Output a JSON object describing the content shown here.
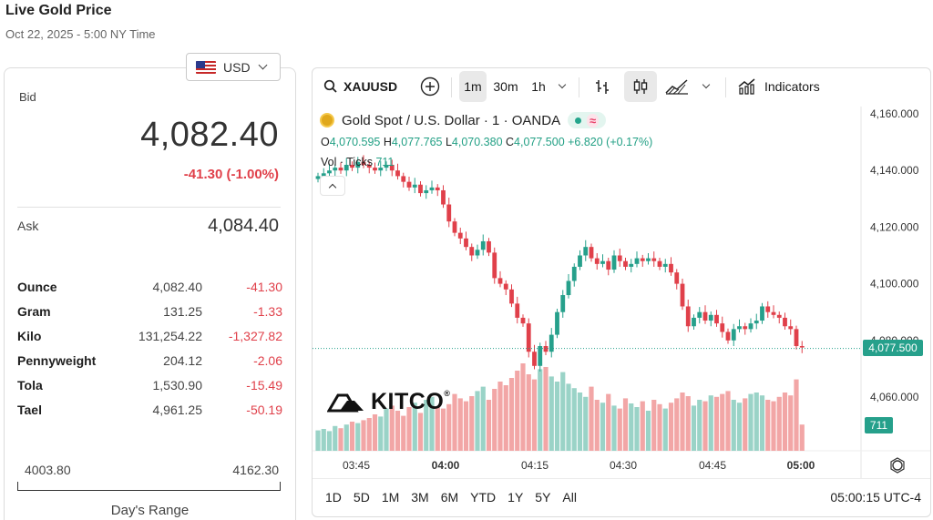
{
  "header": {
    "title": "Live Gold Price",
    "subtitle": "Oct 22, 2025 - 5:00 NY Time"
  },
  "currency": {
    "selected": "USD"
  },
  "quote": {
    "bid_label": "Bid",
    "bid_value": "4,082.40",
    "bid_change": "-41.30 (-1.00%)",
    "ask_label": "Ask",
    "ask_value": "4,084.40"
  },
  "units": [
    {
      "name": "Ounce",
      "price": "4,082.40",
      "change": "-41.30"
    },
    {
      "name": "Gram",
      "price": "131.25",
      "change": "-1.33"
    },
    {
      "name": "Kilo",
      "price": "131,254.22",
      "change": "-1,327.82"
    },
    {
      "name": "Pennyweight",
      "price": "204.12",
      "change": "-2.06"
    },
    {
      "name": "Tola",
      "price": "1,530.90",
      "change": "-15.49"
    },
    {
      "name": "Tael",
      "price": "4,961.25",
      "change": "-50.19"
    }
  ],
  "days_range": {
    "low": "4003.80",
    "high": "4162.30",
    "label": "Day's Range"
  },
  "toolbar": {
    "symbol": "XAUUSD",
    "intervals": [
      "1m",
      "30m",
      "1h"
    ],
    "selected_interval": "1m",
    "indicators_label": "Indicators"
  },
  "legend": {
    "instrument": "Gold Spot / U.S. Dollar · 1 · OANDA",
    "o_label": "O",
    "o_value": "4,070.595",
    "h_label": "H",
    "h_value": "4,077.765",
    "l_label": "L",
    "l_value": "4,070.380",
    "c_label": "C",
    "c_value": "4,077.500",
    "change": "+6.820 (+0.17%)",
    "vol_label": "Vol · Ticks",
    "vol_value": "711"
  },
  "price_tag": "4,077.500",
  "volume_tag": "711",
  "watermark": "KITCO",
  "range_buttons": [
    "1D",
    "5D",
    "1M",
    "3M",
    "6M",
    "YTD",
    "1Y",
    "5Y",
    "All"
  ],
  "clock": "05:00:15 UTC-4",
  "colors": {
    "up": "#26a08b",
    "down": "#e0404a",
    "vol_up": "#9ad3c7",
    "vol_down": "#f2a6a6"
  },
  "chart_data": {
    "type": "candlestick",
    "y_ticks": [
      "4,160.000",
      "4,140.000",
      "4,120.000",
      "4,100.000",
      "4,080.000",
      "4,060.000"
    ],
    "x_ticks": [
      "03:45",
      "04:00",
      "04:15",
      "04:30",
      "04:45",
      "05:00"
    ],
    "ylim": [
      4050,
      4162
    ],
    "closes": [
      4138,
      4139,
      4140,
      4141,
      4140,
      4142,
      4141,
      4143,
      4142,
      4141,
      4140,
      4141,
      4142,
      4140,
      4138,
      4136,
      4134,
      4135,
      4132,
      4133,
      4134,
      4133,
      4128,
      4122,
      4118,
      4116,
      4113,
      4110,
      4112,
      4115,
      4111,
      4102,
      4100,
      4098,
      4093,
      4088,
      4086,
      4076,
      4071,
      4078,
      4076,
      4082,
      4090,
      4096,
      4101,
      4106,
      4110,
      4113,
      4109,
      4107,
      4108,
      4105,
      4110,
      4108,
      4106,
      4107,
      4109,
      4108,
      4109,
      4108,
      4106,
      4107,
      4104,
      4100,
      4092,
      4085,
      4088,
      4090,
      4087,
      4089,
      4086,
      4083,
      4080,
      4084,
      4085,
      4084,
      4086,
      4087,
      4092,
      4090,
      4089,
      4088,
      4085,
      4084,
      4078,
      4077.5
    ],
    "volume": [
      28,
      30,
      27,
      34,
      31,
      36,
      40,
      38,
      42,
      45,
      50,
      47,
      58,
      62,
      55,
      48,
      60,
      66,
      52,
      70,
      74,
      61,
      58,
      64,
      78,
      72,
      68,
      75,
      82,
      88,
      70,
      85,
      95,
      90,
      100,
      110,
      120,
      105,
      98,
      112,
      115,
      102,
      95,
      108,
      92,
      86,
      80,
      74,
      88,
      70,
      66,
      78,
      62,
      58,
      72,
      65,
      60,
      68,
      55,
      70,
      64,
      58,
      66,
      72,
      80,
      75,
      62,
      70,
      68,
      76,
      74,
      78,
      82,
      70,
      66,
      72,
      78,
      80,
      76,
      70,
      68,
      74,
      80,
      76,
      98,
      36
    ]
  }
}
